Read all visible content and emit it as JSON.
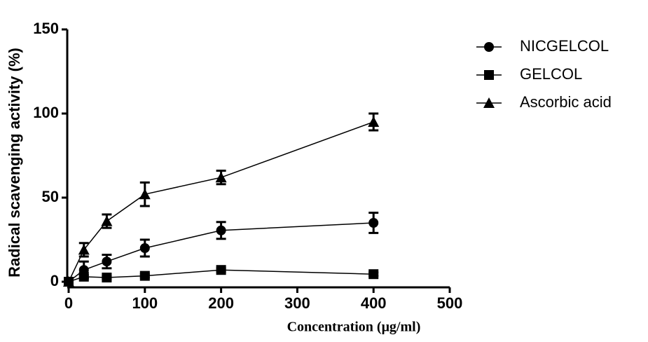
{
  "chart_data": {
    "type": "line",
    "x": [
      0,
      20,
      50,
      100,
      200,
      400
    ],
    "series": [
      {
        "name": "NICGELCOL",
        "color": "#000000",
        "marker": "circle",
        "values": [
          0,
          7,
          12,
          20,
          30.5,
          35
        ],
        "errors": [
          null,
          5,
          4,
          5,
          5,
          6
        ]
      },
      {
        "name": "GELCOL",
        "color": "#000000",
        "marker": "square",
        "values": [
          0,
          3,
          2.5,
          3.5,
          7,
          4.5
        ],
        "errors": [
          null,
          1,
          1,
          1,
          1,
          1
        ]
      },
      {
        "name": "Ascorbic acid",
        "color": "#000000",
        "marker": "triangle",
        "values": [
          0,
          19,
          36,
          52,
          62,
          95
        ],
        "errors": [
          null,
          4,
          4,
          7,
          4,
          5
        ]
      }
    ],
    "xlabel": "Concentration (μg/ml)",
    "ylabel": "Radical scavenging activity (%)",
    "xlim": [
      0,
      500
    ],
    "xticks": [
      0,
      100,
      200,
      300,
      400,
      500
    ],
    "ylim": [
      0,
      150
    ],
    "yticks": [
      0,
      50,
      100,
      150
    ],
    "legend": "right"
  }
}
